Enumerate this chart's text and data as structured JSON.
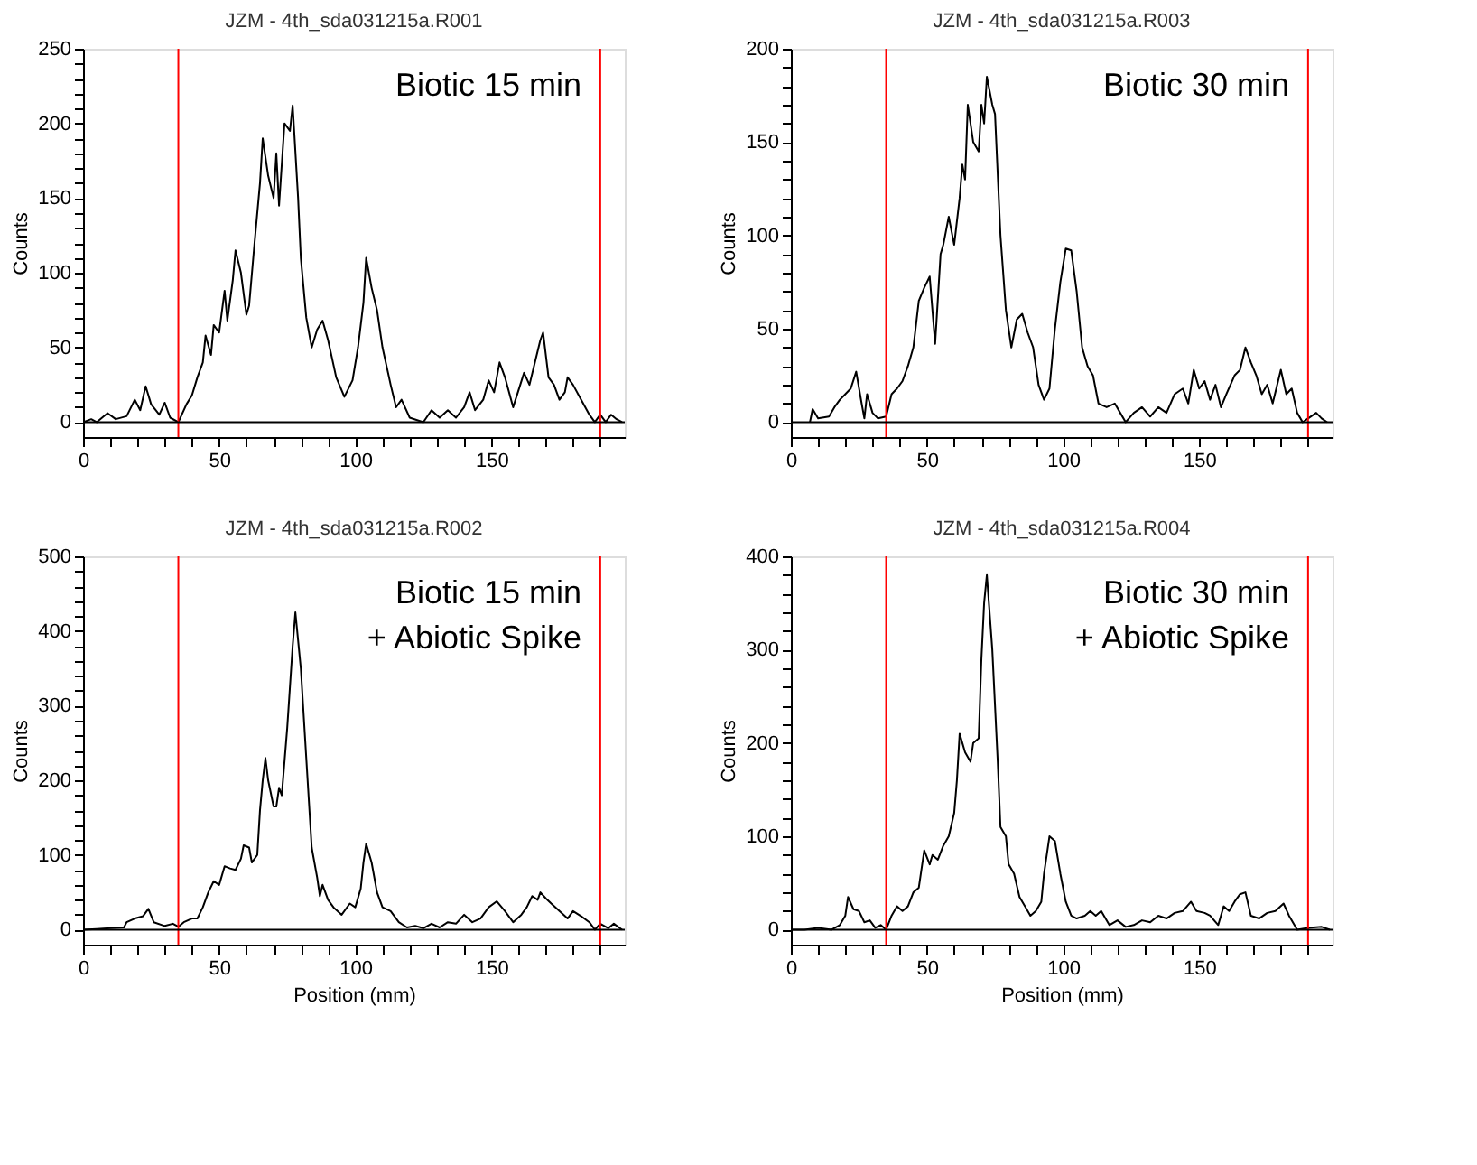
{
  "chart_data": [
    {
      "type": "line",
      "title": "JZM - 4th_sda031215a.R001",
      "ylabel": "Counts",
      "annotations": [
        "Biotic 15 min"
      ],
      "x": [
        0,
        3,
        5,
        9,
        12,
        16,
        19,
        21,
        23,
        25,
        28,
        30,
        32,
        35,
        38,
        40,
        42,
        44,
        45,
        47,
        48,
        50,
        52,
        53,
        55,
        56,
        58,
        60,
        61,
        63,
        65,
        66,
        68,
        70,
        71,
        72,
        74,
        76,
        77,
        79,
        80,
        82,
        84,
        86,
        88,
        90,
        93,
        96,
        99,
        101,
        103,
        104,
        106,
        108,
        110,
        113,
        115,
        117,
        120,
        125,
        128,
        131,
        134,
        137,
        140,
        142,
        144,
        147,
        149,
        151,
        153,
        155,
        158,
        162,
        164,
        166,
        168,
        169,
        171,
        173,
        175,
        177,
        178,
        180,
        183,
        186,
        188,
        190,
        192,
        194,
        196,
        198
      ],
      "series": [
        {
          "color": "#000000",
          "values": [
            0,
            2,
            0,
            6,
            2,
            4,
            15,
            8,
            24,
            12,
            5,
            13,
            3,
            0,
            12,
            18,
            30,
            40,
            58,
            45,
            65,
            60,
            88,
            68,
            95,
            115,
            100,
            72,
            78,
            120,
            160,
            190,
            165,
            150,
            180,
            145,
            200,
            195,
            212,
            150,
            110,
            70,
            50,
            62,
            68,
            55,
            30,
            17,
            28,
            50,
            80,
            110,
            90,
            75,
            50,
            25,
            10,
            15,
            3,
            0,
            8,
            3,
            8,
            3,
            10,
            20,
            8,
            15,
            28,
            20,
            40,
            30,
            10,
            33,
            25,
            40,
            55,
            60,
            30,
            25,
            15,
            20,
            30,
            25,
            15,
            5,
            0,
            5,
            0,
            5,
            2,
            0
          ]
        }
      ],
      "xlim": [
        0,
        199
      ],
      "ylim": [
        -10,
        250
      ],
      "xticks": [
        0,
        {
          "value": 10,
          "label": null
        },
        {
          "value": 20,
          "label": null
        },
        {
          "value": 30,
          "label": null
        },
        {
          "value": 40,
          "label": null
        },
        50,
        {
          "value": 60,
          "label": null
        },
        {
          "value": 70,
          "label": null
        },
        {
          "value": 80,
          "label": null
        },
        {
          "value": 90,
          "label": null
        },
        100,
        {
          "value": 110,
          "label": null
        },
        {
          "value": 120,
          "label": null
        },
        {
          "value": 130,
          "label": null
        },
        {
          "value": 140,
          "label": null
        },
        150,
        {
          "value": 160,
          "label": null
        },
        {
          "value": 170,
          "label": null
        },
        {
          "value": 180,
          "label": null
        },
        {
          "value": 190,
          "label": null
        }
      ],
      "yticks": [
        0,
        {
          "value": 10,
          "label": null
        },
        {
          "value": 20,
          "label": null
        },
        {
          "value": 30,
          "label": null
        },
        {
          "value": 40,
          "label": null
        },
        50,
        {
          "value": 60,
          "label": null
        },
        {
          "value": 70,
          "label": null
        },
        {
          "value": 80,
          "label": null
        },
        {
          "value": 90,
          "label": null
        },
        100,
        {
          "value": 110,
          "label": null
        },
        {
          "value": 120,
          "label": null
        },
        {
          "value": 130,
          "label": null
        },
        {
          "value": 140,
          "label": null
        },
        150,
        {
          "value": 160,
          "label": null
        },
        {
          "value": 170,
          "label": null
        },
        {
          "value": 180,
          "label": null
        },
        {
          "value": 190,
          "label": null
        },
        200,
        {
          "value": 210,
          "label": null
        },
        {
          "value": 220,
          "label": null
        },
        {
          "value": 230,
          "label": null
        },
        {
          "value": 240,
          "label": null
        },
        250
      ],
      "ref_lines": [
        {
          "axis": "x",
          "value": 35,
          "color": "#ff0000"
        },
        {
          "axis": "x",
          "value": 190,
          "color": "#ff0000"
        },
        {
          "axis": "y",
          "value": 0,
          "color": "#000000"
        }
      ],
      "grid": false
    },
    {
      "type": "line",
      "title": "JZM - 4th_sda031215a.R003",
      "ylabel": "Counts",
      "annotations": [
        "Biotic 30 min"
      ],
      "x": [
        7,
        8,
        10,
        14,
        16,
        18,
        20,
        22,
        24,
        26,
        27,
        28,
        30,
        32,
        35,
        37,
        39,
        41,
        43,
        45,
        47,
        49,
        51,
        52,
        53,
        55,
        56,
        58,
        60,
        62,
        63,
        64,
        65,
        67,
        69,
        70,
        71,
        72,
        74,
        75,
        77,
        79,
        81,
        83,
        85,
        87,
        89,
        91,
        93,
        95,
        97,
        99,
        101,
        103,
        105,
        107,
        109,
        111,
        113,
        116,
        119,
        121,
        123,
        126,
        129,
        132,
        135,
        138,
        141,
        144,
        146,
        148,
        150,
        152,
        154,
        156,
        158,
        160,
        163,
        165,
        167,
        169,
        171,
        173,
        175,
        177,
        180,
        182,
        184,
        186,
        188,
        190,
        193,
        195,
        197
      ],
      "series": [
        {
          "color": "#000000",
          "values": [
            0,
            7,
            2,
            3,
            8,
            12,
            15,
            18,
            27,
            10,
            2,
            15,
            5,
            2,
            3,
            15,
            18,
            22,
            30,
            40,
            65,
            72,
            78,
            60,
            42,
            90,
            95,
            110,
            95,
            120,
            138,
            130,
            170,
            150,
            145,
            170,
            160,
            185,
            170,
            165,
            100,
            60,
            40,
            55,
            58,
            48,
            40,
            20,
            12,
            18,
            50,
            75,
            93,
            92,
            70,
            40,
            30,
            25,
            10,
            8,
            10,
            5,
            0,
            5,
            8,
            3,
            8,
            5,
            15,
            18,
            10,
            28,
            18,
            22,
            12,
            20,
            8,
            15,
            25,
            28,
            40,
            32,
            25,
            15,
            20,
            10,
            28,
            15,
            18,
            5,
            0,
            2,
            5,
            2,
            0
          ]
        }
      ],
      "xlim": [
        0,
        199
      ],
      "ylim": [
        -8,
        200
      ],
      "xticks": [
        0,
        {
          "value": 10,
          "label": null
        },
        {
          "value": 20,
          "label": null
        },
        {
          "value": 30,
          "label": null
        },
        {
          "value": 40,
          "label": null
        },
        50,
        {
          "value": 60,
          "label": null
        },
        {
          "value": 70,
          "label": null
        },
        {
          "value": 80,
          "label": null
        },
        {
          "value": 90,
          "label": null
        },
        100,
        {
          "value": 110,
          "label": null
        },
        {
          "value": 120,
          "label": null
        },
        {
          "value": 130,
          "label": null
        },
        {
          "value": 140,
          "label": null
        },
        150,
        {
          "value": 160,
          "label": null
        },
        {
          "value": 170,
          "label": null
        },
        {
          "value": 180,
          "label": null
        },
        {
          "value": 190,
          "label": null
        }
      ],
      "yticks": [
        0,
        {
          "value": 10,
          "label": null
        },
        {
          "value": 20,
          "label": null
        },
        {
          "value": 30,
          "label": null
        },
        {
          "value": 40,
          "label": null
        },
        50,
        {
          "value": 60,
          "label": null
        },
        {
          "value": 70,
          "label": null
        },
        {
          "value": 80,
          "label": null
        },
        {
          "value": 90,
          "label": null
        },
        100,
        {
          "value": 110,
          "label": null
        },
        {
          "value": 120,
          "label": null
        },
        {
          "value": 130,
          "label": null
        },
        {
          "value": 140,
          "label": null
        },
        150,
        {
          "value": 160,
          "label": null
        },
        {
          "value": 170,
          "label": null
        },
        {
          "value": 180,
          "label": null
        },
        {
          "value": 190,
          "label": null
        },
        200
      ],
      "ref_lines": [
        {
          "axis": "x",
          "value": 35,
          "color": "#ff0000"
        },
        {
          "axis": "x",
          "value": 190,
          "color": "#ff0000"
        },
        {
          "axis": "y",
          "value": 0,
          "color": "#000000"
        }
      ],
      "grid": false
    },
    {
      "type": "line",
      "title": "JZM - 4th_sda031215a.R002",
      "xlabel": "Position (mm)",
      "ylabel": "Counts",
      "annotations": [
        "Biotic 15 min\n+ Abiotic Spike"
      ],
      "x": [
        0,
        5,
        10,
        15,
        16,
        19,
        22,
        24,
        26,
        30,
        33,
        35,
        37,
        40,
        42,
        44,
        46,
        48,
        50,
        52,
        54,
        56,
        58,
        59,
        61,
        62,
        64,
        65,
        66,
        67,
        68,
        70,
        71,
        72,
        73,
        75,
        77,
        78,
        80,
        82,
        84,
        86,
        87,
        88,
        90,
        92,
        95,
        98,
        100,
        102,
        103,
        104,
        106,
        108,
        110,
        113,
        116,
        119,
        122,
        125,
        128,
        131,
        134,
        137,
        140,
        143,
        146,
        149,
        152,
        155,
        158,
        161,
        163,
        165,
        167,
        168,
        170,
        172,
        175,
        178,
        180,
        183,
        186,
        188,
        190,
        193,
        195,
        198
      ],
      "series": [
        {
          "color": "#000000",
          "values": [
            0,
            1,
            2,
            3,
            10,
            15,
            18,
            28,
            10,
            5,
            8,
            4,
            10,
            15,
            15,
            30,
            50,
            65,
            60,
            85,
            82,
            80,
            95,
            113,
            110,
            90,
            100,
            160,
            200,
            230,
            200,
            165,
            165,
            190,
            180,
            270,
            380,
            425,
            350,
            230,
            110,
            70,
            45,
            60,
            40,
            30,
            20,
            35,
            30,
            55,
            90,
            115,
            90,
            50,
            30,
            25,
            10,
            3,
            5,
            2,
            8,
            3,
            10,
            8,
            20,
            10,
            15,
            30,
            38,
            25,
            10,
            20,
            30,
            45,
            40,
            50,
            42,
            35,
            25,
            15,
            25,
            18,
            10,
            0,
            8,
            2,
            8,
            0
          ]
        }
      ],
      "xlim": [
        0,
        199
      ],
      "ylim": [
        -20,
        500
      ],
      "xticks": [
        0,
        {
          "value": 10,
          "label": null
        },
        {
          "value": 20,
          "label": null
        },
        {
          "value": 30,
          "label": null
        },
        {
          "value": 40,
          "label": null
        },
        50,
        {
          "value": 60,
          "label": null
        },
        {
          "value": 70,
          "label": null
        },
        {
          "value": 80,
          "label": null
        },
        {
          "value": 90,
          "label": null
        },
        100,
        {
          "value": 110,
          "label": null
        },
        {
          "value": 120,
          "label": null
        },
        {
          "value": 130,
          "label": null
        },
        {
          "value": 140,
          "label": null
        },
        150,
        {
          "value": 160,
          "label": null
        },
        {
          "value": 170,
          "label": null
        },
        {
          "value": 180,
          "label": null
        },
        {
          "value": 190,
          "label": null
        }
      ],
      "yticks": [
        0,
        {
          "value": 20,
          "label": null
        },
        {
          "value": 40,
          "label": null
        },
        {
          "value": 60,
          "label": null
        },
        {
          "value": 80,
          "label": null
        },
        100,
        {
          "value": 120,
          "label": null
        },
        {
          "value": 140,
          "label": null
        },
        {
          "value": 160,
          "label": null
        },
        {
          "value": 180,
          "label": null
        },
        200,
        {
          "value": 220,
          "label": null
        },
        {
          "value": 240,
          "label": null
        },
        {
          "value": 260,
          "label": null
        },
        {
          "value": 280,
          "label": null
        },
        300,
        {
          "value": 320,
          "label": null
        },
        {
          "value": 340,
          "label": null
        },
        {
          "value": 360,
          "label": null
        },
        {
          "value": 380,
          "label": null
        },
        400,
        {
          "value": 420,
          "label": null
        },
        {
          "value": 440,
          "label": null
        },
        {
          "value": 460,
          "label": null
        },
        {
          "value": 480,
          "label": null
        },
        500
      ],
      "ref_lines": [
        {
          "axis": "x",
          "value": 35,
          "color": "#ff0000"
        },
        {
          "axis": "x",
          "value": 190,
          "color": "#ff0000"
        },
        {
          "axis": "y",
          "value": 0,
          "color": "#000000"
        }
      ],
      "grid": false
    },
    {
      "type": "line",
      "title": "JZM - 4th_sda031215a.R004",
      "xlabel": "Position (mm)",
      "ylabel": "Counts",
      "annotations": [
        "Biotic  30 min\n+ Abiotic Spike"
      ],
      "x": [
        0,
        5,
        10,
        15,
        18,
        20,
        21,
        23,
        25,
        27,
        29,
        31,
        33,
        35,
        37,
        39,
        41,
        43,
        45,
        47,
        49,
        51,
        52,
        54,
        56,
        58,
        60,
        61,
        62,
        64,
        66,
        67,
        69,
        70,
        71,
        72,
        74,
        76,
        77,
        79,
        80,
        82,
        84,
        86,
        88,
        90,
        92,
        93,
        95,
        97,
        99,
        101,
        103,
        105,
        108,
        110,
        112,
        114,
        117,
        120,
        123,
        126,
        129,
        132,
        135,
        138,
        141,
        144,
        147,
        149,
        152,
        154,
        157,
        159,
        161,
        163,
        165,
        167,
        169,
        172,
        175,
        178,
        181,
        183,
        186,
        190,
        195,
        198
      ],
      "series": [
        {
          "color": "#000000",
          "values": [
            0,
            0,
            2,
            0,
            5,
            15,
            35,
            22,
            20,
            8,
            10,
            2,
            5,
            0,
            15,
            25,
            20,
            25,
            40,
            45,
            85,
            70,
            80,
            75,
            90,
            100,
            125,
            160,
            210,
            190,
            180,
            200,
            205,
            290,
            350,
            380,
            300,
            180,
            110,
            100,
            70,
            60,
            35,
            25,
            15,
            20,
            30,
            60,
            100,
            95,
            60,
            30,
            15,
            12,
            15,
            20,
            15,
            20,
            5,
            10,
            3,
            5,
            10,
            8,
            15,
            12,
            18,
            20,
            30,
            20,
            18,
            15,
            5,
            25,
            20,
            30,
            38,
            40,
            15,
            12,
            18,
            20,
            28,
            15,
            0,
            2,
            3,
            0
          ]
        }
      ],
      "xlim": [
        0,
        199
      ],
      "ylim": [
        -16,
        400
      ],
      "xticks": [
        0,
        {
          "value": 10,
          "label": null
        },
        {
          "value": 20,
          "label": null
        },
        {
          "value": 30,
          "label": null
        },
        {
          "value": 40,
          "label": null
        },
        50,
        {
          "value": 60,
          "label": null
        },
        {
          "value": 70,
          "label": null
        },
        {
          "value": 80,
          "label": null
        },
        {
          "value": 90,
          "label": null
        },
        100,
        {
          "value": 110,
          "label": null
        },
        {
          "value": 120,
          "label": null
        },
        {
          "value": 130,
          "label": null
        },
        {
          "value": 140,
          "label": null
        },
        150,
        {
          "value": 160,
          "label": null
        },
        {
          "value": 170,
          "label": null
        },
        {
          "value": 180,
          "label": null
        },
        {
          "value": 190,
          "label": null
        }
      ],
      "yticks": [
        0,
        {
          "value": 20,
          "label": null
        },
        {
          "value": 40,
          "label": null
        },
        {
          "value": 60,
          "label": null
        },
        {
          "value": 80,
          "label": null
        },
        100,
        {
          "value": 120,
          "label": null
        },
        {
          "value": 140,
          "label": null
        },
        {
          "value": 160,
          "label": null
        },
        {
          "value": 180,
          "label": null
        },
        200,
        {
          "value": 220,
          "label": null
        },
        {
          "value": 240,
          "label": null
        },
        {
          "value": 260,
          "label": null
        },
        {
          "value": 280,
          "label": null
        },
        300,
        {
          "value": 320,
          "label": null
        },
        {
          "value": 340,
          "label": null
        },
        {
          "value": 360,
          "label": null
        },
        {
          "value": 380,
          "label": null
        },
        400
      ],
      "ref_lines": [
        {
          "axis": "x",
          "value": 35,
          "color": "#ff0000"
        },
        {
          "axis": "x",
          "value": 190,
          "color": "#ff0000"
        },
        {
          "axis": "y",
          "value": 0,
          "color": "#000000"
        }
      ],
      "grid": false
    }
  ]
}
